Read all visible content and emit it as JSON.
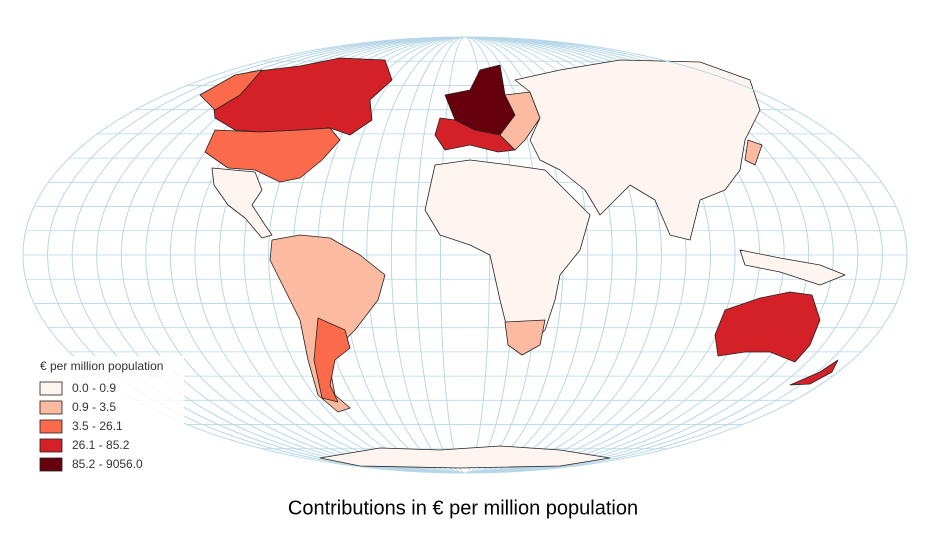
{
  "legend": {
    "title": "€ per million population",
    "classes": [
      {
        "label": "0.0 - 0.9",
        "color": "#fff5f0"
      },
      {
        "label": "0.9 - 3.5",
        "color": "#fcbba1"
      },
      {
        "label": "3.5 - 26.1",
        "color": "#fb6a4a"
      },
      {
        "label": "26.1 - 85.2",
        "color": "#d42027"
      },
      {
        "label": "85.2 - 9056.0",
        "color": "#67000d"
      }
    ]
  },
  "caption": "Contributions in € per million population"
}
